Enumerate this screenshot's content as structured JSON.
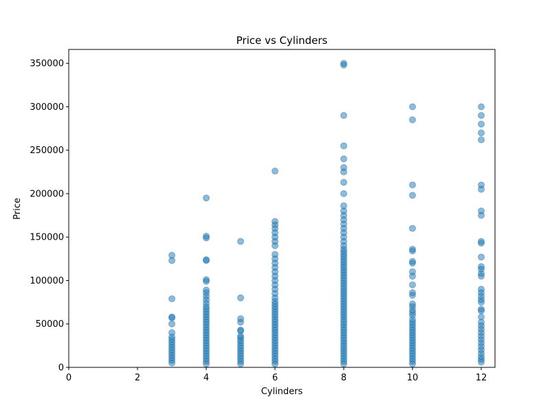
{
  "chart_data": {
    "type": "scatter",
    "title": "Price vs Cylinders",
    "xlabel": "Cylinders",
    "ylabel": "Price",
    "xlim": [
      0,
      12.4
    ],
    "ylim": [
      0,
      366000
    ],
    "xticks": [
      0,
      2,
      4,
      6,
      8,
      10,
      12
    ],
    "yticks": [
      0,
      50000,
      100000,
      150000,
      200000,
      250000,
      300000,
      350000
    ],
    "grid": false,
    "marker_color": "#1f77b4",
    "marker_alpha": 0.5,
    "points": [
      {
        "x": 3,
        "y": 5000
      },
      {
        "x": 3,
        "y": 8000
      },
      {
        "x": 3,
        "y": 11000
      },
      {
        "x": 3,
        "y": 14000
      },
      {
        "x": 3,
        "y": 17000
      },
      {
        "x": 3,
        "y": 20000
      },
      {
        "x": 3,
        "y": 23000
      },
      {
        "x": 3,
        "y": 26000
      },
      {
        "x": 3,
        "y": 29000
      },
      {
        "x": 3,
        "y": 32000
      },
      {
        "x": 3,
        "y": 35000
      },
      {
        "x": 3,
        "y": 40000
      },
      {
        "x": 3,
        "y": 50000
      },
      {
        "x": 3,
        "y": 57000
      },
      {
        "x": 3,
        "y": 58000
      },
      {
        "x": 3,
        "y": 79000
      },
      {
        "x": 3,
        "y": 123000
      },
      {
        "x": 3,
        "y": 129000
      },
      {
        "x": 4,
        "y": 4000
      },
      {
        "x": 4,
        "y": 7000
      },
      {
        "x": 4,
        "y": 10000
      },
      {
        "x": 4,
        "y": 13000
      },
      {
        "x": 4,
        "y": 16000
      },
      {
        "x": 4,
        "y": 19000
      },
      {
        "x": 4,
        "y": 22000
      },
      {
        "x": 4,
        "y": 25000
      },
      {
        "x": 4,
        "y": 28000
      },
      {
        "x": 4,
        "y": 31000
      },
      {
        "x": 4,
        "y": 34000
      },
      {
        "x": 4,
        "y": 37000
      },
      {
        "x": 4,
        "y": 40000
      },
      {
        "x": 4,
        "y": 43000
      },
      {
        "x": 4,
        "y": 46000
      },
      {
        "x": 4,
        "y": 49000
      },
      {
        "x": 4,
        "y": 52000
      },
      {
        "x": 4,
        "y": 55000
      },
      {
        "x": 4,
        "y": 58000
      },
      {
        "x": 4,
        "y": 61000
      },
      {
        "x": 4,
        "y": 64000
      },
      {
        "x": 4,
        "y": 67000
      },
      {
        "x": 4,
        "y": 70000
      },
      {
        "x": 4,
        "y": 74000
      },
      {
        "x": 4,
        "y": 78000
      },
      {
        "x": 4,
        "y": 82000
      },
      {
        "x": 4,
        "y": 86000
      },
      {
        "x": 4,
        "y": 89000
      },
      {
        "x": 4,
        "y": 99000
      },
      {
        "x": 4,
        "y": 101000
      },
      {
        "x": 4,
        "y": 123000
      },
      {
        "x": 4,
        "y": 124000
      },
      {
        "x": 4,
        "y": 149000
      },
      {
        "x": 4,
        "y": 151000
      },
      {
        "x": 4,
        "y": 195000
      },
      {
        "x": 5,
        "y": 4000
      },
      {
        "x": 5,
        "y": 7000
      },
      {
        "x": 5,
        "y": 10000
      },
      {
        "x": 5,
        "y": 13000
      },
      {
        "x": 5,
        "y": 16000
      },
      {
        "x": 5,
        "y": 19000
      },
      {
        "x": 5,
        "y": 22000
      },
      {
        "x": 5,
        "y": 25000
      },
      {
        "x": 5,
        "y": 28000
      },
      {
        "x": 5,
        "y": 31000
      },
      {
        "x": 5,
        "y": 34000
      },
      {
        "x": 5,
        "y": 36000
      },
      {
        "x": 5,
        "y": 42000
      },
      {
        "x": 5,
        "y": 43000
      },
      {
        "x": 5,
        "y": 52000
      },
      {
        "x": 5,
        "y": 56000
      },
      {
        "x": 5,
        "y": 80000
      },
      {
        "x": 5,
        "y": 145000
      },
      {
        "x": 6,
        "y": 4000
      },
      {
        "x": 6,
        "y": 7000
      },
      {
        "x": 6,
        "y": 10000
      },
      {
        "x": 6,
        "y": 13000
      },
      {
        "x": 6,
        "y": 16000
      },
      {
        "x": 6,
        "y": 19000
      },
      {
        "x": 6,
        "y": 22000
      },
      {
        "x": 6,
        "y": 25000
      },
      {
        "x": 6,
        "y": 28000
      },
      {
        "x": 6,
        "y": 31000
      },
      {
        "x": 6,
        "y": 34000
      },
      {
        "x": 6,
        "y": 37000
      },
      {
        "x": 6,
        "y": 40000
      },
      {
        "x": 6,
        "y": 43000
      },
      {
        "x": 6,
        "y": 46000
      },
      {
        "x": 6,
        "y": 49000
      },
      {
        "x": 6,
        "y": 52000
      },
      {
        "x": 6,
        "y": 55000
      },
      {
        "x": 6,
        "y": 58000
      },
      {
        "x": 6,
        "y": 61000
      },
      {
        "x": 6,
        "y": 64000
      },
      {
        "x": 6,
        "y": 67000
      },
      {
        "x": 6,
        "y": 70000
      },
      {
        "x": 6,
        "y": 73000
      },
      {
        "x": 6,
        "y": 76000
      },
      {
        "x": 6,
        "y": 80000
      },
      {
        "x": 6,
        "y": 85000
      },
      {
        "x": 6,
        "y": 90000
      },
      {
        "x": 6,
        "y": 95000
      },
      {
        "x": 6,
        "y": 100000
      },
      {
        "x": 6,
        "y": 105000
      },
      {
        "x": 6,
        "y": 110000
      },
      {
        "x": 6,
        "y": 115000
      },
      {
        "x": 6,
        "y": 120000
      },
      {
        "x": 6,
        "y": 125000
      },
      {
        "x": 6,
        "y": 130000
      },
      {
        "x": 6,
        "y": 140000
      },
      {
        "x": 6,
        "y": 145000
      },
      {
        "x": 6,
        "y": 150000
      },
      {
        "x": 6,
        "y": 155000
      },
      {
        "x": 6,
        "y": 160000
      },
      {
        "x": 6,
        "y": 164000
      },
      {
        "x": 6,
        "y": 168000
      },
      {
        "x": 6,
        "y": 226000
      },
      {
        "x": 8,
        "y": 4000
      },
      {
        "x": 8,
        "y": 7000
      },
      {
        "x": 8,
        "y": 10000
      },
      {
        "x": 8,
        "y": 13000
      },
      {
        "x": 8,
        "y": 16000
      },
      {
        "x": 8,
        "y": 19000
      },
      {
        "x": 8,
        "y": 22000
      },
      {
        "x": 8,
        "y": 25000
      },
      {
        "x": 8,
        "y": 28000
      },
      {
        "x": 8,
        "y": 31000
      },
      {
        "x": 8,
        "y": 34000
      },
      {
        "x": 8,
        "y": 37000
      },
      {
        "x": 8,
        "y": 40000
      },
      {
        "x": 8,
        "y": 43000
      },
      {
        "x": 8,
        "y": 46000
      },
      {
        "x": 8,
        "y": 49000
      },
      {
        "x": 8,
        "y": 52000
      },
      {
        "x": 8,
        "y": 55000
      },
      {
        "x": 8,
        "y": 58000
      },
      {
        "x": 8,
        "y": 61000
      },
      {
        "x": 8,
        "y": 64000
      },
      {
        "x": 8,
        "y": 67000
      },
      {
        "x": 8,
        "y": 70000
      },
      {
        "x": 8,
        "y": 73000
      },
      {
        "x": 8,
        "y": 76000
      },
      {
        "x": 8,
        "y": 79000
      },
      {
        "x": 8,
        "y": 82000
      },
      {
        "x": 8,
        "y": 85000
      },
      {
        "x": 8,
        "y": 88000
      },
      {
        "x": 8,
        "y": 91000
      },
      {
        "x": 8,
        "y": 94000
      },
      {
        "x": 8,
        "y": 97000
      },
      {
        "x": 8,
        "y": 100000
      },
      {
        "x": 8,
        "y": 103000
      },
      {
        "x": 8,
        "y": 106000
      },
      {
        "x": 8,
        "y": 109000
      },
      {
        "x": 8,
        "y": 112000
      },
      {
        "x": 8,
        "y": 115000
      },
      {
        "x": 8,
        "y": 118000
      },
      {
        "x": 8,
        "y": 121000
      },
      {
        "x": 8,
        "y": 124000
      },
      {
        "x": 8,
        "y": 127000
      },
      {
        "x": 8,
        "y": 130000
      },
      {
        "x": 8,
        "y": 133000
      },
      {
        "x": 8,
        "y": 136000
      },
      {
        "x": 8,
        "y": 140000
      },
      {
        "x": 8,
        "y": 145000
      },
      {
        "x": 8,
        "y": 150000
      },
      {
        "x": 8,
        "y": 155000
      },
      {
        "x": 8,
        "y": 160000
      },
      {
        "x": 8,
        "y": 165000
      },
      {
        "x": 8,
        "y": 170000
      },
      {
        "x": 8,
        "y": 175000
      },
      {
        "x": 8,
        "y": 180000
      },
      {
        "x": 8,
        "y": 186000
      },
      {
        "x": 8,
        "y": 200000
      },
      {
        "x": 8,
        "y": 213000
      },
      {
        "x": 8,
        "y": 225000
      },
      {
        "x": 8,
        "y": 230000
      },
      {
        "x": 8,
        "y": 240000
      },
      {
        "x": 8,
        "y": 255000
      },
      {
        "x": 8,
        "y": 290000
      },
      {
        "x": 8,
        "y": 348000
      },
      {
        "x": 8,
        "y": 350000
      },
      {
        "x": 10,
        "y": 4000
      },
      {
        "x": 10,
        "y": 7000
      },
      {
        "x": 10,
        "y": 10000
      },
      {
        "x": 10,
        "y": 13000
      },
      {
        "x": 10,
        "y": 16000
      },
      {
        "x": 10,
        "y": 19000
      },
      {
        "x": 10,
        "y": 22000
      },
      {
        "x": 10,
        "y": 25000
      },
      {
        "x": 10,
        "y": 28000
      },
      {
        "x": 10,
        "y": 31000
      },
      {
        "x": 10,
        "y": 34000
      },
      {
        "x": 10,
        "y": 37000
      },
      {
        "x": 10,
        "y": 40000
      },
      {
        "x": 10,
        "y": 43000
      },
      {
        "x": 10,
        "y": 46000
      },
      {
        "x": 10,
        "y": 49000
      },
      {
        "x": 10,
        "y": 52000
      },
      {
        "x": 10,
        "y": 55000
      },
      {
        "x": 10,
        "y": 60000
      },
      {
        "x": 10,
        "y": 63000
      },
      {
        "x": 10,
        "y": 66000
      },
      {
        "x": 10,
        "y": 70000
      },
      {
        "x": 10,
        "y": 73000
      },
      {
        "x": 10,
        "y": 83000
      },
      {
        "x": 10,
        "y": 86000
      },
      {
        "x": 10,
        "y": 95000
      },
      {
        "x": 10,
        "y": 105000
      },
      {
        "x": 10,
        "y": 110000
      },
      {
        "x": 10,
        "y": 120000
      },
      {
        "x": 10,
        "y": 122000
      },
      {
        "x": 10,
        "y": 134000
      },
      {
        "x": 10,
        "y": 136000
      },
      {
        "x": 10,
        "y": 160000
      },
      {
        "x": 10,
        "y": 198000
      },
      {
        "x": 10,
        "y": 210000
      },
      {
        "x": 10,
        "y": 285000
      },
      {
        "x": 10,
        "y": 300000
      },
      {
        "x": 12,
        "y": 6000
      },
      {
        "x": 12,
        "y": 9000
      },
      {
        "x": 12,
        "y": 12000
      },
      {
        "x": 12,
        "y": 16000
      },
      {
        "x": 12,
        "y": 20000
      },
      {
        "x": 12,
        "y": 24000
      },
      {
        "x": 12,
        "y": 28000
      },
      {
        "x": 12,
        "y": 32000
      },
      {
        "x": 12,
        "y": 36000
      },
      {
        "x": 12,
        "y": 40000
      },
      {
        "x": 12,
        "y": 44000
      },
      {
        "x": 12,
        "y": 48000
      },
      {
        "x": 12,
        "y": 52000
      },
      {
        "x": 12,
        "y": 58000
      },
      {
        "x": 12,
        "y": 65000
      },
      {
        "x": 12,
        "y": 67000
      },
      {
        "x": 12,
        "y": 75000
      },
      {
        "x": 12,
        "y": 78000
      },
      {
        "x": 12,
        "y": 82000
      },
      {
        "x": 12,
        "y": 86000
      },
      {
        "x": 12,
        "y": 90000
      },
      {
        "x": 12,
        "y": 105000
      },
      {
        "x": 12,
        "y": 108000
      },
      {
        "x": 12,
        "y": 113000
      },
      {
        "x": 12,
        "y": 116000
      },
      {
        "x": 12,
        "y": 127000
      },
      {
        "x": 12,
        "y": 143000
      },
      {
        "x": 12,
        "y": 145000
      },
      {
        "x": 12,
        "y": 175000
      },
      {
        "x": 12,
        "y": 180000
      },
      {
        "x": 12,
        "y": 205000
      },
      {
        "x": 12,
        "y": 210000
      },
      {
        "x": 12,
        "y": 262000
      },
      {
        "x": 12,
        "y": 270000
      },
      {
        "x": 12,
        "y": 280000
      },
      {
        "x": 12,
        "y": 290000
      },
      {
        "x": 12,
        "y": 300000
      }
    ]
  }
}
